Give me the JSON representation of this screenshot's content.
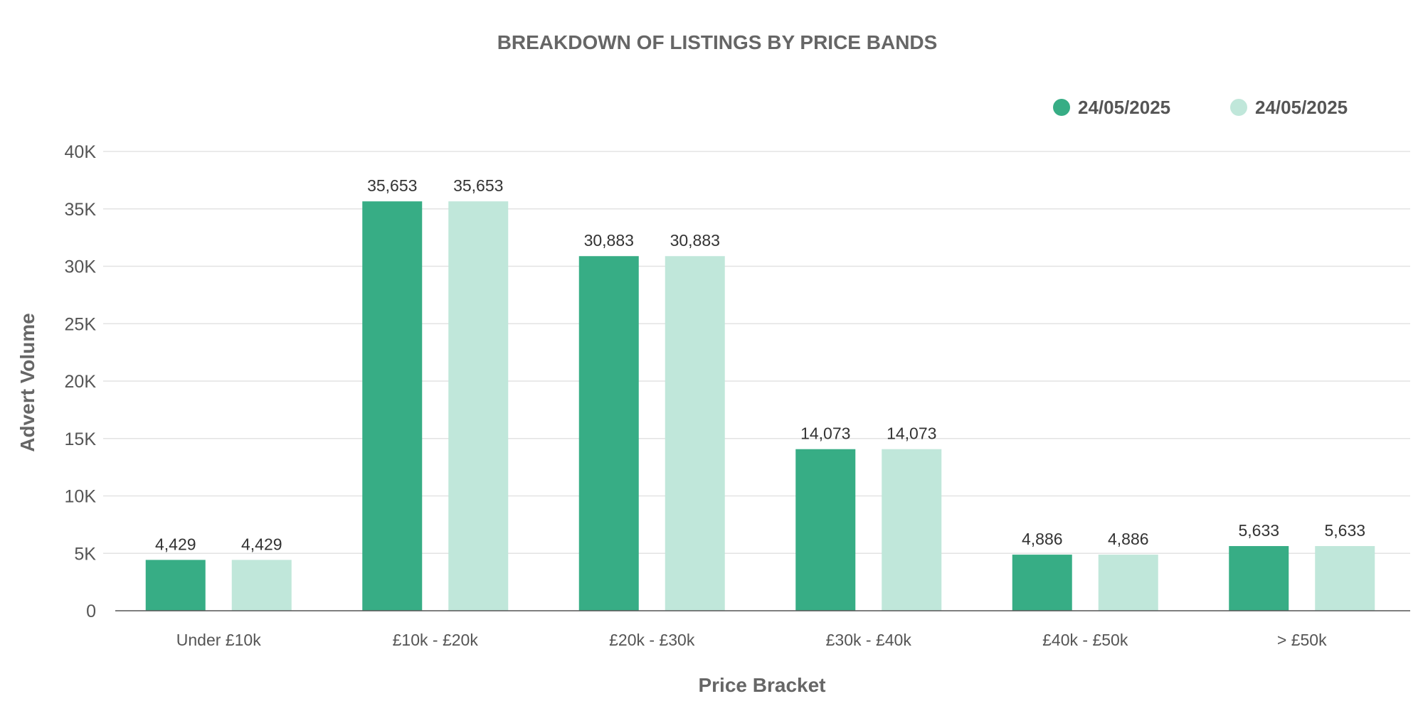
{
  "chart_data": {
    "type": "bar",
    "title": "BREAKDOWN OF LISTINGS BY PRICE BANDS",
    "xlabel": "Price Bracket",
    "ylabel": "Advert Volume",
    "categories": [
      "Under £10k",
      "£10k - £20k",
      "£20k - £30k",
      "£30k - £40k",
      "£40k - £50k",
      "> £50k"
    ],
    "series": [
      {
        "name": "24/05/2025",
        "color": "#37ad85",
        "values": [
          4429,
          35653,
          30883,
          14073,
          4886,
          5633
        ],
        "value_labels": [
          "4,429",
          "35,653",
          "30,883",
          "14,073",
          "4,886",
          "5,633"
        ]
      },
      {
        "name": "24/05/2025",
        "color": "#c0e7da",
        "values": [
          4429,
          35653,
          30883,
          14073,
          4886,
          5633
        ],
        "value_labels": [
          "4,429",
          "35,653",
          "30,883",
          "14,073",
          "4,886",
          "5,633"
        ]
      }
    ],
    "ylim": [
      0,
      40000
    ],
    "y_ticks": [
      0,
      5000,
      10000,
      15000,
      20000,
      25000,
      30000,
      35000,
      40000
    ],
    "y_tick_labels": [
      "0",
      "5K",
      "10K",
      "15K",
      "20K",
      "25K",
      "30K",
      "35K",
      "40K"
    ],
    "grid": true,
    "legend_position": "top-right"
  }
}
